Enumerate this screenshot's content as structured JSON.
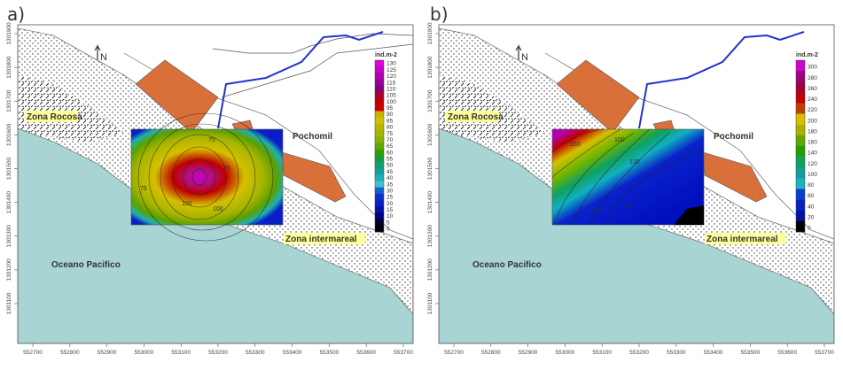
{
  "panels": [
    {
      "letter": "a)",
      "legend_title": "ind.m-2",
      "legend_values": [
        "130",
        "125",
        "120",
        "115",
        "110",
        "105",
        "100",
        "95",
        "90",
        "85",
        "80",
        "75",
        "70",
        "65",
        "60",
        "55",
        "50",
        "45",
        "40",
        "35",
        "30",
        "25",
        "20",
        "15",
        "10",
        "5",
        "0"
      ],
      "contour_labels": [
        "75",
        "75",
        "75",
        "100",
        "100"
      ]
    },
    {
      "letter": "b)",
      "legend_title": "ind.m-2",
      "legend_values": [
        "300",
        "280",
        "260",
        "240",
        "220",
        "200",
        "180",
        "160",
        "140",
        "120",
        "100",
        "80",
        "60",
        "40",
        "20",
        "0"
      ],
      "contour_labels": [
        "150",
        "100",
        "100",
        "60",
        "40"
      ]
    }
  ],
  "map": {
    "north": "N",
    "place_labels": {
      "zona_rocosa": "Zona Rocosa",
      "pochomil": "Pochomil",
      "zona_intermareal": "Zona intermareal",
      "oceano": "Oceano Pacifico"
    },
    "x_ticks": [
      "552700",
      "552800",
      "552900",
      "553000",
      "553100",
      "553200",
      "553300",
      "553400",
      "553500",
      "553600",
      "553700"
    ],
    "y_ticks": [
      "1301900",
      "1301800",
      "1301700",
      "1301600",
      "1301500",
      "1301400",
      "1301300",
      "1301200",
      "1301100"
    ]
  },
  "colors": {
    "ocean": "#a8d5d3",
    "building": "#d9703a",
    "river": "#2233cc"
  }
}
